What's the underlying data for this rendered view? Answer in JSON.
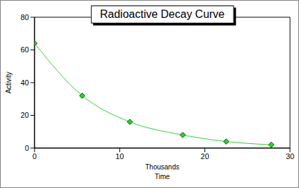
{
  "chart_data": {
    "type": "line",
    "title": "Radioactive Decay Curve",
    "xlabel": "Time",
    "ylabel": "Activity",
    "annotations": [
      "Thousands"
    ],
    "x": [
      0,
      5.6,
      11.2,
      17.4,
      22.5,
      27.8
    ],
    "series": [
      {
        "name": "Activity",
        "color": "#33cc33",
        "marker": "diamond",
        "values": [
          64,
          32,
          16,
          8,
          4,
          2
        ]
      }
    ],
    "xlim": [
      0,
      30
    ],
    "xticks": [
      0,
      10,
      20,
      30
    ],
    "ylim": [
      0,
      80
    ],
    "yticks": [
      0,
      20,
      40,
      60,
      80
    ],
    "grid": false
  }
}
